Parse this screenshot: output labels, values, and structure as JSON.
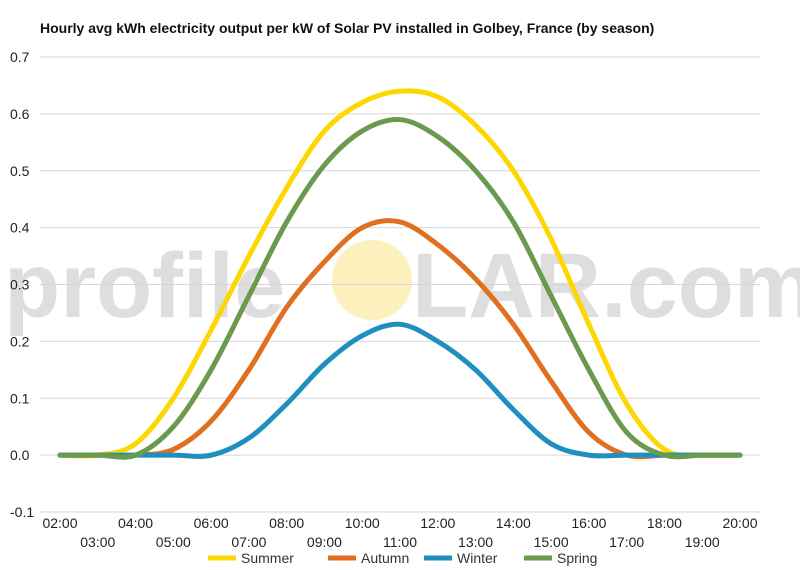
{
  "chart_data": {
    "type": "line",
    "title": "Hourly avg kWh electricity output per kW of Solar PV installed in Golbey, France (by season)",
    "x": [
      "02:00",
      "03:00",
      "04:00",
      "05:00",
      "06:00",
      "07:00",
      "08:00",
      "09:00",
      "10:00",
      "11:00",
      "12:00",
      "13:00",
      "14:00",
      "15:00",
      "16:00",
      "17:00",
      "18:00",
      "19:00",
      "20:00"
    ],
    "ylim": [
      -0.1,
      0.7
    ],
    "yticks": [
      "0.7",
      "0.6",
      "0.5",
      "0.4",
      "0.3",
      "0.2",
      "0.1",
      "0.0",
      "-0.1"
    ],
    "grid": true,
    "legend_position": "bottom",
    "series": [
      {
        "name": "Summer",
        "color": "#FFD700",
        "values": [
          0.0,
          0.0,
          0.02,
          0.1,
          0.22,
          0.35,
          0.47,
          0.57,
          0.62,
          0.64,
          0.63,
          0.58,
          0.5,
          0.38,
          0.23,
          0.09,
          0.01,
          0.0,
          0.0
        ]
      },
      {
        "name": "Autumn",
        "color": "#E0701F",
        "values": [
          0.0,
          0.0,
          0.0,
          0.01,
          0.06,
          0.15,
          0.26,
          0.34,
          0.4,
          0.41,
          0.37,
          0.31,
          0.23,
          0.13,
          0.04,
          0.0,
          0.0,
          0.0,
          0.0
        ]
      },
      {
        "name": "Winter",
        "color": "#1F8FBF",
        "values": [
          0.0,
          0.0,
          0.0,
          0.0,
          0.0,
          0.03,
          0.09,
          0.16,
          0.21,
          0.23,
          0.2,
          0.15,
          0.08,
          0.02,
          0.0,
          0.0,
          0.0,
          0.0,
          0.0
        ]
      },
      {
        "name": "Spring",
        "color": "#6A9A4E",
        "values": [
          0.0,
          0.0,
          0.0,
          0.05,
          0.15,
          0.28,
          0.41,
          0.51,
          0.57,
          0.59,
          0.56,
          0.5,
          0.41,
          0.28,
          0.15,
          0.04,
          0.0,
          0.0,
          0.0
        ]
      }
    ]
  },
  "watermark": {
    "text": "profileSOLAR.com",
    "left_text": "profile",
    "right_text": "LAR.com",
    "sun_color": "#FCEFB0"
  }
}
